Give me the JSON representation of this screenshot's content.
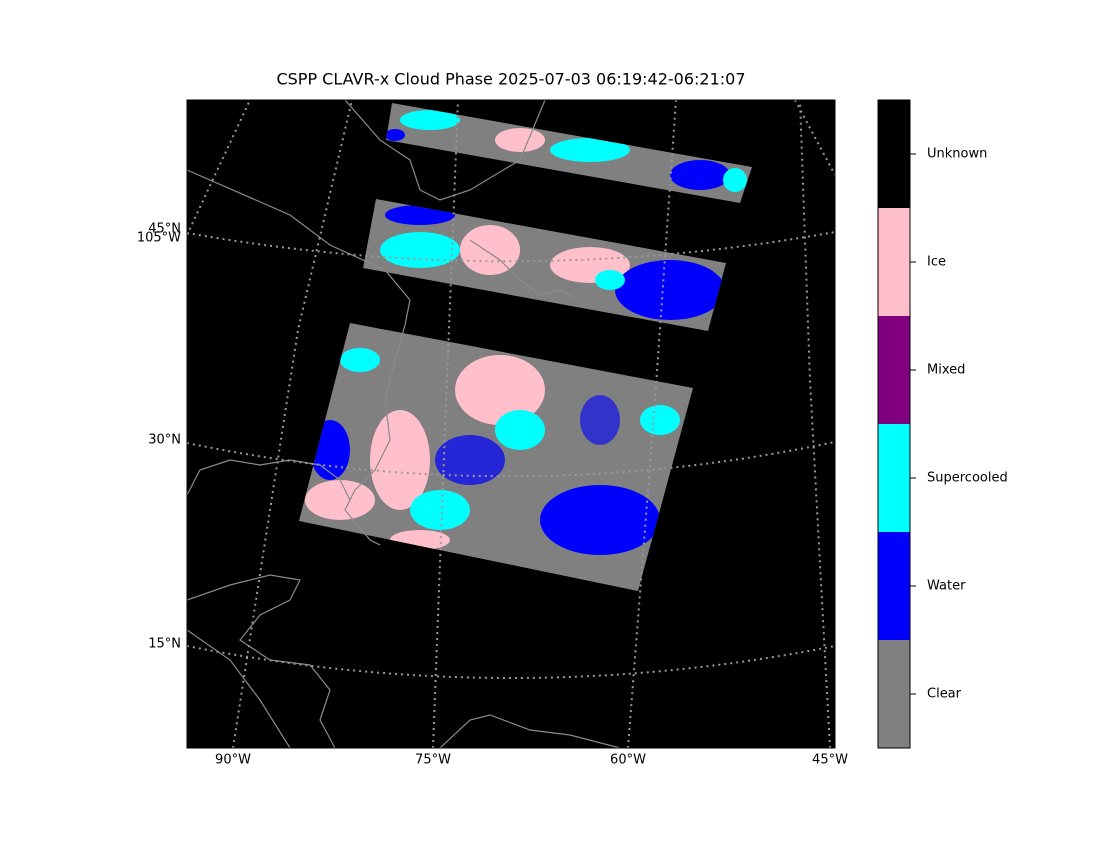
{
  "title": "CSPP CLAVR-x Cloud Phase 2025-07-03 06:19:42-06:21:07",
  "latitude_labels": [
    "45°N",
    "30°N",
    "15°N"
  ],
  "longitude_labels": [
    "105°W",
    "90°W",
    "75°W",
    "60°W",
    "45°W"
  ],
  "colorbar": {
    "categories": [
      {
        "label": "Clear",
        "color": "#808080"
      },
      {
        "label": "Water",
        "color": "#0000ff"
      },
      {
        "label": "Supercooled",
        "color": "#00ffff"
      },
      {
        "label": "Mixed",
        "color": "#800080"
      },
      {
        "label": "Ice",
        "color": "#ffc0cb"
      },
      {
        "label": "Unknown",
        "color": "#000000"
      }
    ]
  }
}
